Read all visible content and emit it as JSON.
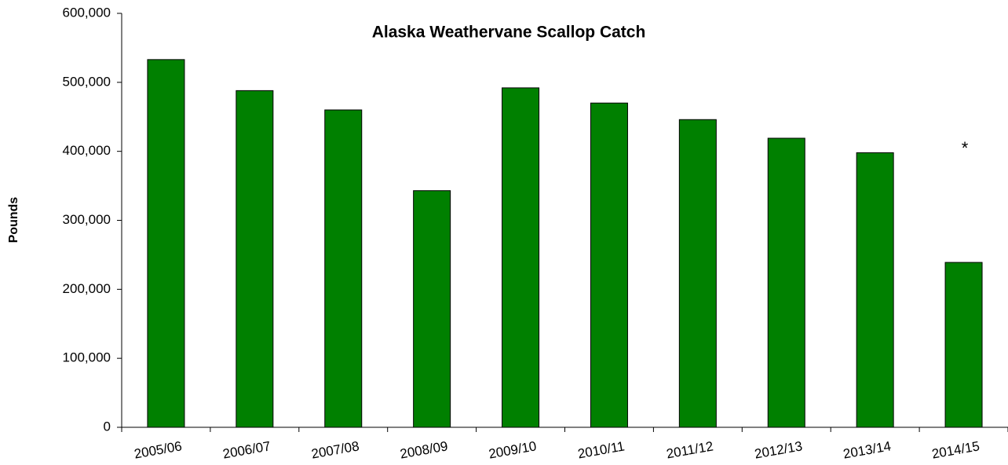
{
  "chart_data": {
    "type": "bar",
    "title": "Alaska Weathervane Scallop Catch",
    "y_label": "Pounds",
    "annotation": "*",
    "categories": [
      "2005/06",
      "2006/07",
      "2007/08",
      "2008/09",
      "2009/10",
      "2010/11",
      "2011/12",
      "2012/13",
      "2013/14",
      "2014/15"
    ],
    "values": [
      533000,
      488000,
      460000,
      343000,
      492000,
      470000,
      446000,
      419000,
      398000,
      239000
    ],
    "color": "#008000",
    "ylim": [
      0,
      600000
    ],
    "yticks": [
      0,
      {
        "value": 100000,
        "label": "100,000"
      },
      {
        "value": 200000,
        "label": "200,000"
      },
      {
        "value": 300000,
        "label": "300,000"
      },
      {
        "value": 400000,
        "label": "400,000"
      },
      {
        "value": 500000,
        "label": "500,000"
      },
      {
        "value": 600000,
        "label": "600,000"
      }
    ],
    "grid": false
  }
}
